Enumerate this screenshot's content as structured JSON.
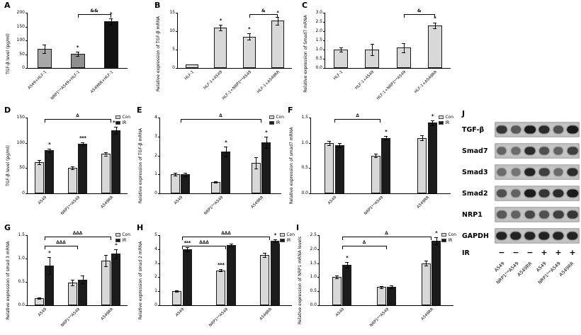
{
  "figure": {
    "legend": {
      "items": [
        {
          "label": "Con",
          "color": "#d8d8d8"
        },
        {
          "label": "IR",
          "color": "#1b1b1b"
        }
      ]
    }
  },
  "chart_data": [
    {
      "panel": "A",
      "type": "bar",
      "ylabel": "TGF-β level (pg/ml)",
      "categories": [
        "A549+HLF-1",
        "NRP1ˡᵒʷA549+HLF-1",
        "A549RR+HLF-1"
      ],
      "values": [
        70,
        52,
        168
      ],
      "errors": [
        15,
        8,
        12
      ],
      "colors": [
        "#a8a8a8",
        "#8f8f8f",
        "#111111"
      ],
      "sig": [
        "",
        "*",
        "*"
      ],
      "ylim": [
        0,
        200
      ],
      "yticks": [
        "0",
        "50",
        "100",
        "150",
        "200"
      ],
      "brackets": [
        {
          "text": "&&",
          "from": 1,
          "to": 2,
          "level": 1
        }
      ]
    },
    {
      "panel": "B",
      "type": "bar",
      "ylabel": "Relative expression of TGF-β mRNA",
      "categories": [
        "HLF-1",
        "HLF-1+A549",
        "HLF-1+NRP1ˡᵒʷA549",
        "HLF-1+A549RR"
      ],
      "values": [
        1,
        11,
        8.5,
        12.8
      ],
      "errors": [
        0.08,
        0.8,
        0.9,
        1.1
      ],
      "colors": [
        "#d8d8d8",
        "#d8d8d8",
        "#d8d8d8",
        "#d8d8d8"
      ],
      "sig": [
        "",
        "*",
        "*",
        "*"
      ],
      "ylim": [
        0,
        15
      ],
      "yticks": [
        "0",
        "5",
        "10",
        "15"
      ],
      "brackets": [
        {
          "text": "&",
          "from": 2,
          "to": 3,
          "level": 1
        }
      ]
    },
    {
      "panel": "C",
      "type": "bar",
      "ylabel": "Relative expression of Smad7 mRNA",
      "categories": [
        "HLF-1",
        "HLF-1+A549",
        "HLF-1+NRP1ˡᵒʷA549",
        "HLF-1+A549RR"
      ],
      "values": [
        1.0,
        1.0,
        1.1,
        2.3
      ],
      "errors": [
        0.12,
        0.3,
        0.25,
        0.15
      ],
      "colors": [
        "#d8d8d8",
        "#d8d8d8",
        "#d8d8d8",
        "#d8d8d8"
      ],
      "sig": [
        "",
        "",
        "",
        "*"
      ],
      "ylim": [
        0,
        3
      ],
      "yticks": [
        "0.0",
        "0.5",
        "1.0",
        "1.5",
        "2.0",
        "2.5",
        "3.0"
      ],
      "brackets": [
        {
          "text": "&",
          "from": 2,
          "to": 3,
          "level": 1
        }
      ]
    },
    {
      "panel": "D",
      "type": "bar",
      "ylabel": "TGF-β level (pg/ml)",
      "categories": [
        "A549",
        "NRP1ˡᵒʷA549",
        "A549RR"
      ],
      "series": [
        {
          "name": "Con",
          "color": "#d8d8d8",
          "values": [
            62,
            50,
            78
          ],
          "errors": [
            4,
            3,
            3
          ],
          "sig": [
            "",
            "",
            ""
          ]
        },
        {
          "name": "IR",
          "color": "#1b1b1b",
          "values": [
            85,
            98,
            125
          ],
          "errors": [
            4,
            3,
            7
          ],
          "sig": [
            "*",
            "***",
            "***"
          ]
        }
      ],
      "ylim": [
        0,
        150
      ],
      "yticks": [
        "0",
        "50",
        "100",
        "150"
      ],
      "brackets": [
        {
          "text": "∆",
          "from": 0,
          "to": 2,
          "level": 1
        }
      ]
    },
    {
      "panel": "E",
      "type": "bar",
      "ylabel": "Relative expression of TGF-β mRNA",
      "categories": [
        "A549",
        "NRP1ˡᵒʷA549",
        "A549RR"
      ],
      "series": [
        {
          "name": "Con",
          "color": "#d8d8d8",
          "values": [
            1.0,
            0.6,
            1.6
          ],
          "errors": [
            0.08,
            0.05,
            0.3
          ],
          "sig": [
            "",
            "",
            ""
          ]
        },
        {
          "name": "IR",
          "color": "#1b1b1b",
          "values": [
            1.0,
            2.2,
            2.7
          ],
          "errors": [
            0.1,
            0.25,
            0.3
          ],
          "sig": [
            "",
            "*",
            "*"
          ]
        }
      ],
      "ylim": [
        0,
        4
      ],
      "yticks": [
        "0",
        "1",
        "2",
        "3",
        "4"
      ],
      "brackets": [
        {
          "text": "∆",
          "from": 0,
          "to": 2,
          "level": 1
        }
      ]
    },
    {
      "panel": "F",
      "type": "bar",
      "ylabel": "Relative expression of smad7 mRNA",
      "categories": [
        "A549",
        "NRP1ˡᵒʷA549",
        "A549RR"
      ],
      "series": [
        {
          "name": "Con",
          "color": "#d8d8d8",
          "values": [
            1.0,
            0.75,
            1.1
          ],
          "errors": [
            0.04,
            0.03,
            0.05
          ],
          "sig": [
            "",
            "",
            ""
          ]
        },
        {
          "name": "IR",
          "color": "#1b1b1b",
          "values": [
            0.95,
            1.1,
            1.4
          ],
          "errors": [
            0.04,
            0.04,
            0.05
          ],
          "sig": [
            "",
            "*",
            "*"
          ]
        }
      ],
      "ylim": [
        0,
        1.5
      ],
      "yticks": [
        "0.0",
        "0.5",
        "1.0",
        "1.5"
      ],
      "brackets": [
        {
          "text": "∆",
          "from": 0,
          "to": 1,
          "level": 1
        }
      ]
    },
    {
      "panel": "G",
      "type": "bar",
      "ylabel": "Relative expression of smad 3 mRNA",
      "categories": [
        "A549",
        "NRP1ˡᵒʷA549",
        "A549RR"
      ],
      "series": [
        {
          "name": "Con",
          "color": "#d8d8d8",
          "values": [
            0.15,
            0.48,
            0.95
          ],
          "errors": [
            0.02,
            0.06,
            0.12
          ],
          "sig": [
            "",
            "",
            ""
          ]
        },
        {
          "name": "IR",
          "color": "#1b1b1b",
          "values": [
            0.85,
            0.55,
            1.1
          ],
          "errors": [
            0.18,
            0.08,
            0.1
          ],
          "sig": [
            "*",
            "",
            "*"
          ]
        }
      ],
      "ylim": [
        0,
        1.5
      ],
      "yticks": [
        "0.0",
        "0.5",
        "1.0",
        "1.5"
      ],
      "brackets": [
        {
          "text": "∆∆∆",
          "from": 0,
          "to": 1,
          "level": 0
        },
        {
          "text": "∆∆∆",
          "from": 0,
          "to": 2,
          "level": 1
        }
      ]
    },
    {
      "panel": "H",
      "type": "bar",
      "ylabel": "Relative expression of smad 2 mRNA",
      "categories": [
        "A549",
        "NRP1ˡᵒʷA549",
        "A549RR"
      ],
      "series": [
        {
          "name": "Con",
          "color": "#d8d8d8",
          "values": [
            1.0,
            2.5,
            3.6
          ],
          "errors": [
            0.06,
            0.1,
            0.15
          ],
          "sig": [
            "",
            "***",
            ""
          ]
        },
        {
          "name": "IR",
          "color": "#1b1b1b",
          "values": [
            4.0,
            4.3,
            4.6
          ],
          "errors": [
            0.15,
            0.1,
            0.12
          ],
          "sig": [
            "***",
            "",
            "*"
          ]
        }
      ],
      "ylim": [
        0,
        5
      ],
      "yticks": [
        "0",
        "1",
        "2",
        "3",
        "4",
        "5"
      ],
      "brackets": [
        {
          "text": "∆∆∆",
          "from": 0,
          "to": 1,
          "level": 0
        },
        {
          "text": "∆∆∆",
          "from": 0,
          "to": 2,
          "level": 1
        }
      ]
    },
    {
      "panel": "I",
      "type": "bar",
      "ylabel": "Relative expression of NRP1 mRNA levels",
      "categories": [
        "A549",
        "NRP1ˡᵒʷA549",
        "A549RR"
      ],
      "series": [
        {
          "name": "Con",
          "color": "#d8d8d8",
          "values": [
            1.0,
            0.65,
            1.5
          ],
          "errors": [
            0.05,
            0.04,
            0.08
          ],
          "sig": [
            "",
            "",
            ""
          ]
        },
        {
          "name": "IR",
          "color": "#1b1b1b",
          "values": [
            1.45,
            0.65,
            2.3
          ],
          "errors": [
            0.1,
            0.05,
            0.12
          ],
          "sig": [
            "*",
            "",
            "*"
          ]
        }
      ],
      "ylim": [
        0,
        2.5
      ],
      "yticks": [
        "0.0",
        "0.5",
        "1.0",
        "1.5",
        "2.0",
        "2.5"
      ],
      "brackets": [
        {
          "text": "∆",
          "from": 0,
          "to": 1,
          "level": 0
        },
        {
          "text": "∆",
          "from": 0,
          "to": 2,
          "level": 1
        }
      ]
    }
  ],
  "blot": {
    "panel": "J",
    "rows": [
      {
        "label": "TGF-β",
        "bands": [
          0.8,
          0.6,
          0.95,
          0.85,
          0.65,
          0.95
        ]
      },
      {
        "label": "Smad7",
        "bands": [
          0.55,
          0.5,
          0.85,
          0.65,
          0.55,
          0.75
        ]
      },
      {
        "label": "Smad3",
        "bands": [
          0.5,
          0.45,
          0.9,
          0.75,
          0.5,
          0.85
        ]
      },
      {
        "label": "Smad2",
        "bands": [
          0.65,
          0.55,
          0.95,
          0.8,
          0.85,
          0.95
        ]
      },
      {
        "label": "NRP1",
        "bands": [
          0.6,
          0.55,
          0.7,
          0.65,
          0.75,
          0.8
        ]
      },
      {
        "label": "GAPDH",
        "bands": [
          0.9,
          0.9,
          0.9,
          0.9,
          0.9,
          0.9
        ]
      }
    ],
    "ir_row": {
      "label": "IR",
      "signs": [
        "−",
        "−",
        "−",
        "+",
        "+",
        "+"
      ]
    },
    "lanes": [
      "A549",
      "NRP1ˡᵒʷA549",
      "A549RR",
      "A549",
      "NRP1ˡᵒʷA549",
      "A549RR"
    ]
  }
}
